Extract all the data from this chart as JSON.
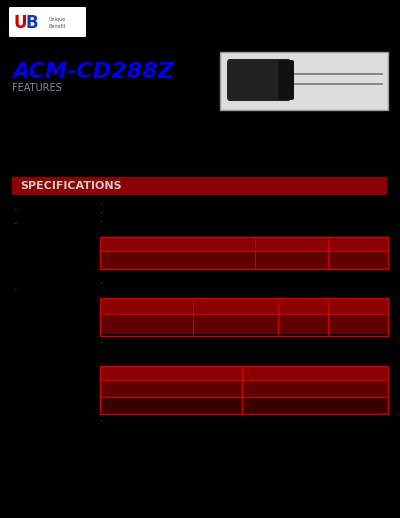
{
  "bg_color": "#000000",
  "logo_box_color": "#ffffff",
  "logo_u_color": "#cc0000",
  "logo_b_color": "#1a3aaa",
  "title": "ACM-CD288Z",
  "title_color": "#0000ee",
  "subtitle": "FEATURES",
  "subtitle_color": "#8888aa",
  "spec_bar_color": "#8b0000",
  "spec_text": "SPECIFICATIONS",
  "spec_text_color": "#cccccc",
  "table1_header_color": "#8b0000",
  "table1_row_color": "#600000",
  "table2_header_color": "#8b0000",
  "table2_row_color": "#600000",
  "table3_header_color": "#8b0000",
  "table3_row_color": "#600000",
  "image_box_color": "#dddddd",
  "image_border_color": "#999999",
  "label_color": "#666688"
}
